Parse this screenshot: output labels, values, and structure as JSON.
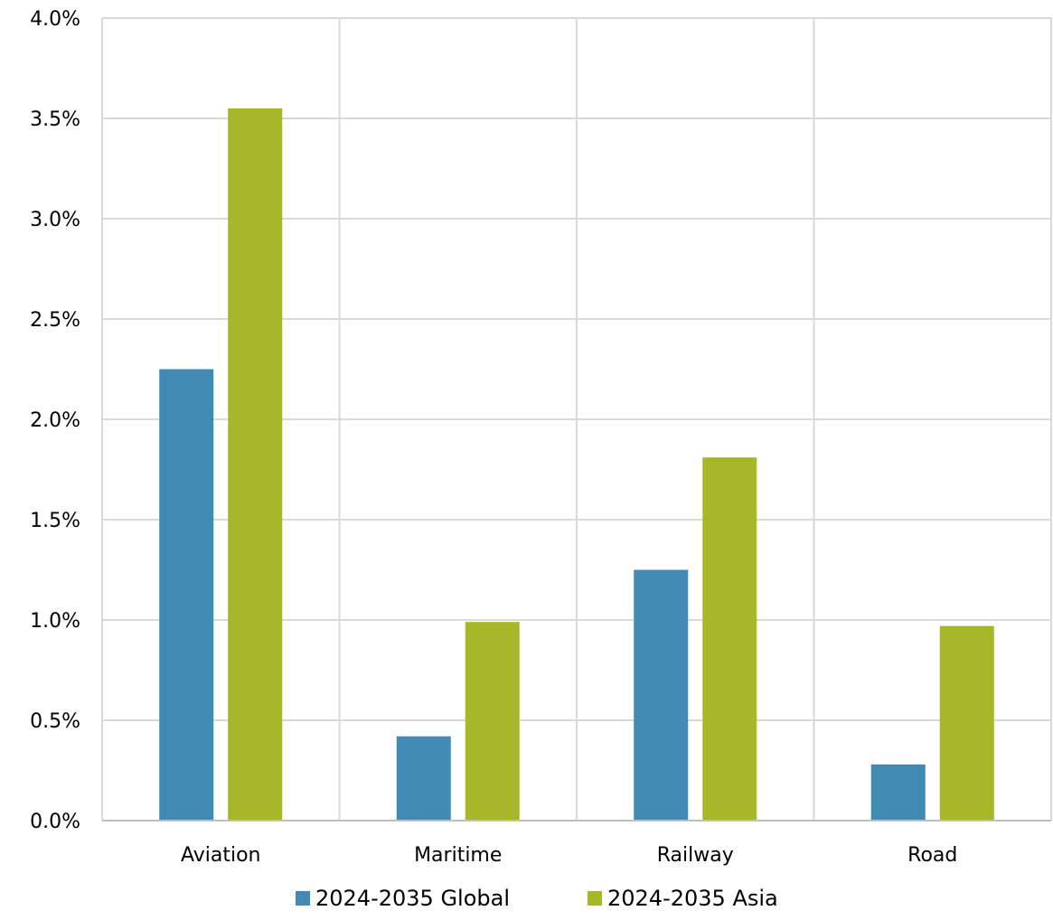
{
  "chart_data": {
    "type": "bar",
    "categories": [
      "Aviation",
      "Maritime",
      "Railway",
      "Road"
    ],
    "series": [
      {
        "name": "2024-2035 Global",
        "color": "#418ab3",
        "values": [
          2.25,
          0.42,
          1.25,
          0.28
        ]
      },
      {
        "name": "2024-2035 Asia",
        "color": "#a6b727",
        "values": [
          3.55,
          0.99,
          1.81,
          0.97
        ]
      }
    ],
    "yticks": [
      "0.0%",
      "0.5%",
      "1.0%",
      "1.5%",
      "2.0%",
      "2.5%",
      "3.0%",
      "3.5%",
      "4.0%"
    ],
    "ylim": [
      0,
      4
    ],
    "unit": "%",
    "grid": "both",
    "legend": "bottom"
  }
}
